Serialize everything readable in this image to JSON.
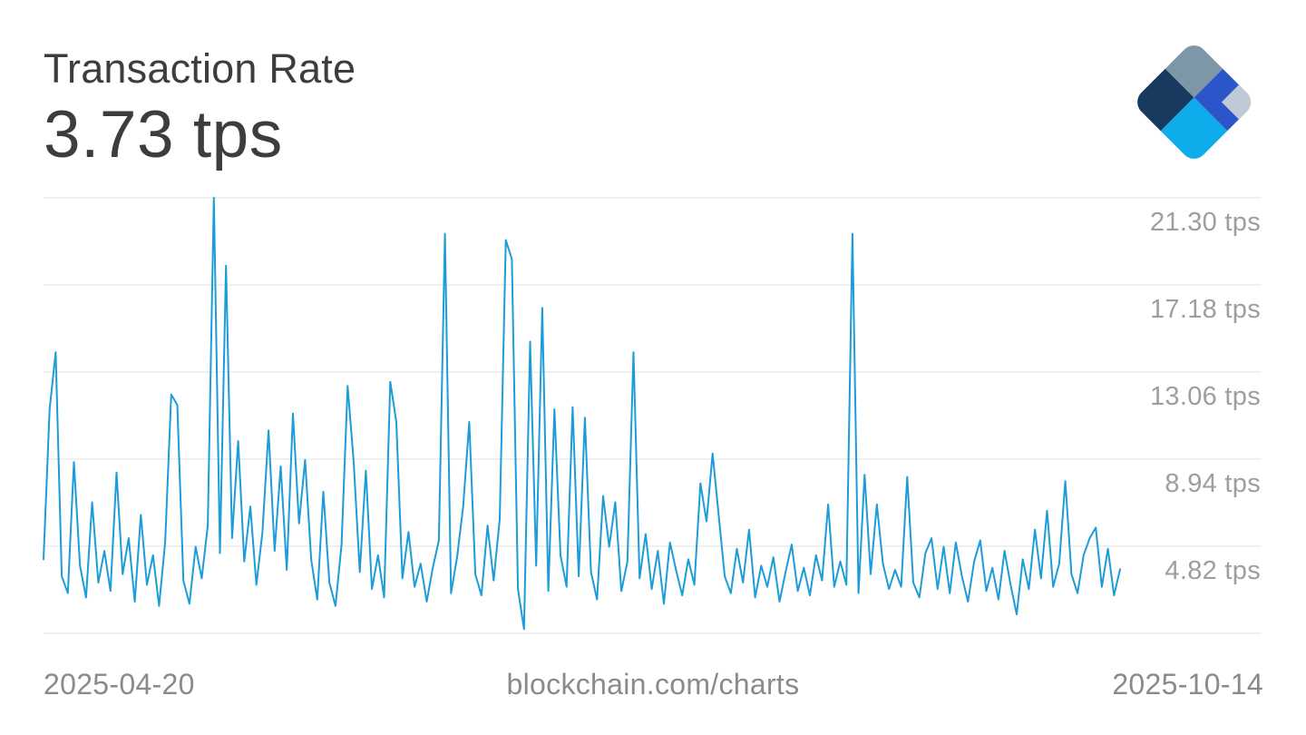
{
  "header": {
    "title": "Transaction Rate",
    "value": "3.73 tps"
  },
  "footer": {
    "start_date": "2025-04-20",
    "watermark": "blockchain.com/charts",
    "end_date": "2025-10-14"
  },
  "icons": {
    "logo": "blockchain-diamond-logo"
  },
  "colors": {
    "line": "#1C9CD8",
    "grid": "#E2E2E2",
    "title_text": "#3D3D3D",
    "axis_text": "#9E9E9E",
    "footer_text": "#8A8A8A",
    "logo_navy": "#173A5E",
    "logo_slate": "#7D97A9",
    "logo_royal": "#2B55C8",
    "logo_cyan": "#0EACEA",
    "logo_lightgray": "#BECBD7"
  },
  "chart_data": {
    "type": "line",
    "title": "Transaction Rate",
    "current_value": 3.73,
    "unit": "tps",
    "x_start": "2025-04-20",
    "x_end": "2025-10-14",
    "x_interval": "daily",
    "ylim": [
      0.7,
      21.3
    ],
    "grid": true,
    "legend": "none",
    "yticks": [
      {
        "value": 21.3,
        "label": "21.30 tps"
      },
      {
        "value": 17.18,
        "label": "17.18 tps"
      },
      {
        "value": 13.06,
        "label": "13.06 tps"
      },
      {
        "value": 8.94,
        "label": "8.94 tps"
      },
      {
        "value": 4.82,
        "label": "4.82 tps"
      }
    ],
    "baseline_gridline_value": 0.7,
    "values": [
      4.2,
      11.3,
      14.0,
      3.4,
      2.6,
      8.8,
      3.9,
      2.4,
      6.9,
      3.1,
      4.6,
      2.7,
      8.3,
      3.5,
      5.2,
      2.2,
      6.3,
      3.0,
      4.4,
      2.0,
      5.0,
      12.0,
      11.5,
      3.2,
      2.1,
      4.8,
      3.3,
      5.8,
      21.3,
      4.5,
      18.1,
      5.2,
      9.8,
      4.1,
      6.7,
      3.0,
      5.5,
      10.3,
      4.6,
      8.6,
      3.7,
      11.1,
      5.9,
      8.9,
      4.2,
      2.3,
      7.4,
      3.1,
      2.0,
      4.9,
      12.4,
      8.8,
      3.6,
      8.4,
      2.8,
      4.4,
      2.4,
      12.6,
      10.7,
      3.3,
      5.5,
      2.9,
      4.0,
      2.2,
      3.8,
      5.1,
      19.6,
      2.6,
      4.3,
      6.7,
      10.7,
      3.5,
      2.5,
      5.8,
      3.2,
      6.1,
      19.3,
      18.4,
      2.8,
      0.9,
      14.5,
      3.9,
      16.1,
      2.7,
      11.3,
      4.4,
      2.9,
      11.4,
      3.4,
      10.9,
      3.6,
      2.3,
      7.2,
      4.8,
      6.9,
      2.7,
      4.1,
      14.0,
      3.3,
      5.4,
      2.8,
      4.6,
      2.1,
      5.0,
      3.7,
      2.5,
      4.2,
      3.0,
      7.8,
      6.0,
      9.2,
      6.3,
      3.4,
      2.6,
      4.7,
      3.1,
      5.6,
      2.4,
      3.9,
      2.9,
      4.3,
      2.2,
      3.6,
      4.9,
      2.7,
      3.8,
      2.5,
      4.4,
      3.2,
      6.8,
      2.9,
      4.1,
      3.0,
      19.6,
      2.6,
      8.2,
      3.5,
      6.8,
      4.0,
      2.8,
      3.7,
      2.9,
      8.1,
      3.1,
      2.4,
      4.5,
      5.2,
      2.8,
      4.8,
      2.6,
      5.0,
      3.4,
      2.2,
      4.1,
      5.1,
      2.7,
      3.8,
      2.3,
      4.6,
      3.0,
      1.6,
      4.2,
      2.8,
      5.6,
      3.3,
      6.5,
      2.9,
      4.0,
      7.9,
      3.5,
      2.6,
      4.4,
      5.2,
      5.7,
      2.9,
      4.7,
      2.5,
      3.73
    ]
  }
}
